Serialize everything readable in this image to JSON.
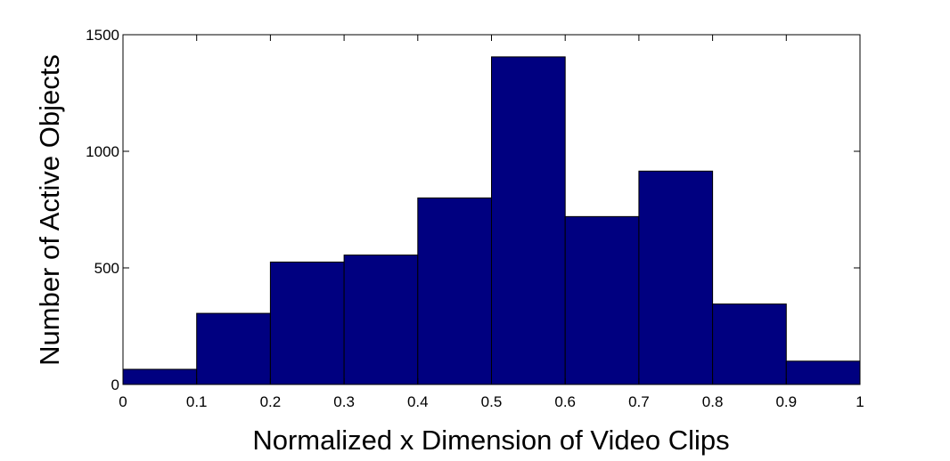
{
  "chart_data": {
    "type": "bar",
    "title": "",
    "xlabel": "Normalized x Dimension of Video Clips",
    "ylabel": "Number of Active Objects",
    "xlim": [
      0,
      1
    ],
    "ylim": [
      0,
      1500
    ],
    "grid": false,
    "legend": "none",
    "bar_color": "#000080",
    "bar_edge_color": "#000000",
    "bins": [
      {
        "start": 0.0,
        "end": 0.1,
        "value": 65
      },
      {
        "start": 0.1,
        "end": 0.2,
        "value": 305
      },
      {
        "start": 0.2,
        "end": 0.3,
        "value": 525
      },
      {
        "start": 0.3,
        "end": 0.4,
        "value": 555
      },
      {
        "start": 0.4,
        "end": 0.5,
        "value": 800
      },
      {
        "start": 0.5,
        "end": 0.6,
        "value": 1405
      },
      {
        "start": 0.6,
        "end": 0.7,
        "value": 720
      },
      {
        "start": 0.7,
        "end": 0.8,
        "value": 915
      },
      {
        "start": 0.8,
        "end": 0.9,
        "value": 345
      },
      {
        "start": 0.9,
        "end": 1.0,
        "value": 100
      }
    ],
    "x_ticks": [
      {
        "value": 0,
        "label": "0"
      },
      {
        "value": 0.1,
        "label": "0.1"
      },
      {
        "value": 0.2,
        "label": "0.2"
      },
      {
        "value": 0.3,
        "label": "0.3"
      },
      {
        "value": 0.4,
        "label": "0.4"
      },
      {
        "value": 0.5,
        "label": "0.5"
      },
      {
        "value": 0.6,
        "label": "0.6"
      },
      {
        "value": 0.7,
        "label": "0.7"
      },
      {
        "value": 0.8,
        "label": "0.8"
      },
      {
        "value": 0.9,
        "label": "0.9"
      },
      {
        "value": 1,
        "label": "1"
      }
    ],
    "y_ticks": [
      {
        "value": 0,
        "label": "0"
      },
      {
        "value": 500,
        "label": "500"
      },
      {
        "value": 1000,
        "label": "1000"
      },
      {
        "value": 1500,
        "label": "1500"
      }
    ]
  }
}
